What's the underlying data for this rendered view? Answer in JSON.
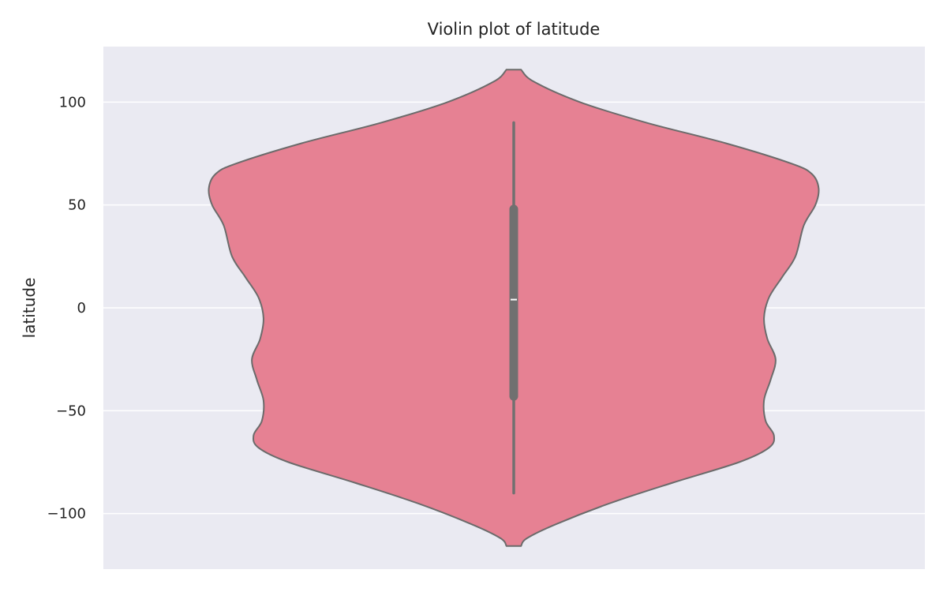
{
  "chart_data": {
    "type": "violin",
    "title": "Violin plot of latitude",
    "xlabel": "",
    "ylabel": "latitude",
    "ylim": [
      -127,
      127
    ],
    "yticks": [
      100,
      50,
      0,
      -50,
      -100
    ],
    "ytick_labels": [
      "100",
      "50",
      "0",
      "−50",
      "−100"
    ],
    "grid": true,
    "colors": {
      "background": "#EAEAF2",
      "grid": "#FFFFFF",
      "violin_fill": "#E68193",
      "violin_edge": "#6B6B6B",
      "box": "#707070",
      "median": "#FFFFFF"
    },
    "density_profile": [
      {
        "lat": 115.8,
        "half_width": 0.022
      },
      {
        "lat": 110,
        "half_width": 0.06
      },
      {
        "lat": 100,
        "half_width": 0.2
      },
      {
        "lat": 90,
        "half_width": 0.4
      },
      {
        "lat": 80,
        "half_width": 0.64
      },
      {
        "lat": 70,
        "half_width": 0.84
      },
      {
        "lat": 65,
        "half_width": 0.9
      },
      {
        "lat": 58,
        "half_width": 0.92
      },
      {
        "lat": 50,
        "half_width": 0.91
      },
      {
        "lat": 40,
        "half_width": 0.875
      },
      {
        "lat": 25,
        "half_width": 0.85
      },
      {
        "lat": 15,
        "half_width": 0.81
      },
      {
        "lat": 5,
        "half_width": 0.77
      },
      {
        "lat": -5,
        "half_width": 0.755
      },
      {
        "lat": -15,
        "half_width": 0.765
      },
      {
        "lat": -25,
        "half_width": 0.79
      },
      {
        "lat": -35,
        "half_width": 0.775
      },
      {
        "lat": -45,
        "half_width": 0.755
      },
      {
        "lat": -55,
        "half_width": 0.76
      },
      {
        "lat": -62,
        "half_width": 0.785
      },
      {
        "lat": -68,
        "half_width": 0.77
      },
      {
        "lat": -75,
        "half_width": 0.68
      },
      {
        "lat": -85,
        "half_width": 0.48
      },
      {
        "lat": -95,
        "half_width": 0.29
      },
      {
        "lat": -105,
        "half_width": 0.13
      },
      {
        "lat": -112,
        "half_width": 0.04
      },
      {
        "lat": -115.8,
        "half_width": 0.022
      }
    ],
    "box": {
      "whisker_low": -90,
      "q1": -43,
      "median": 4,
      "q3": 48,
      "whisker_high": 90
    }
  }
}
